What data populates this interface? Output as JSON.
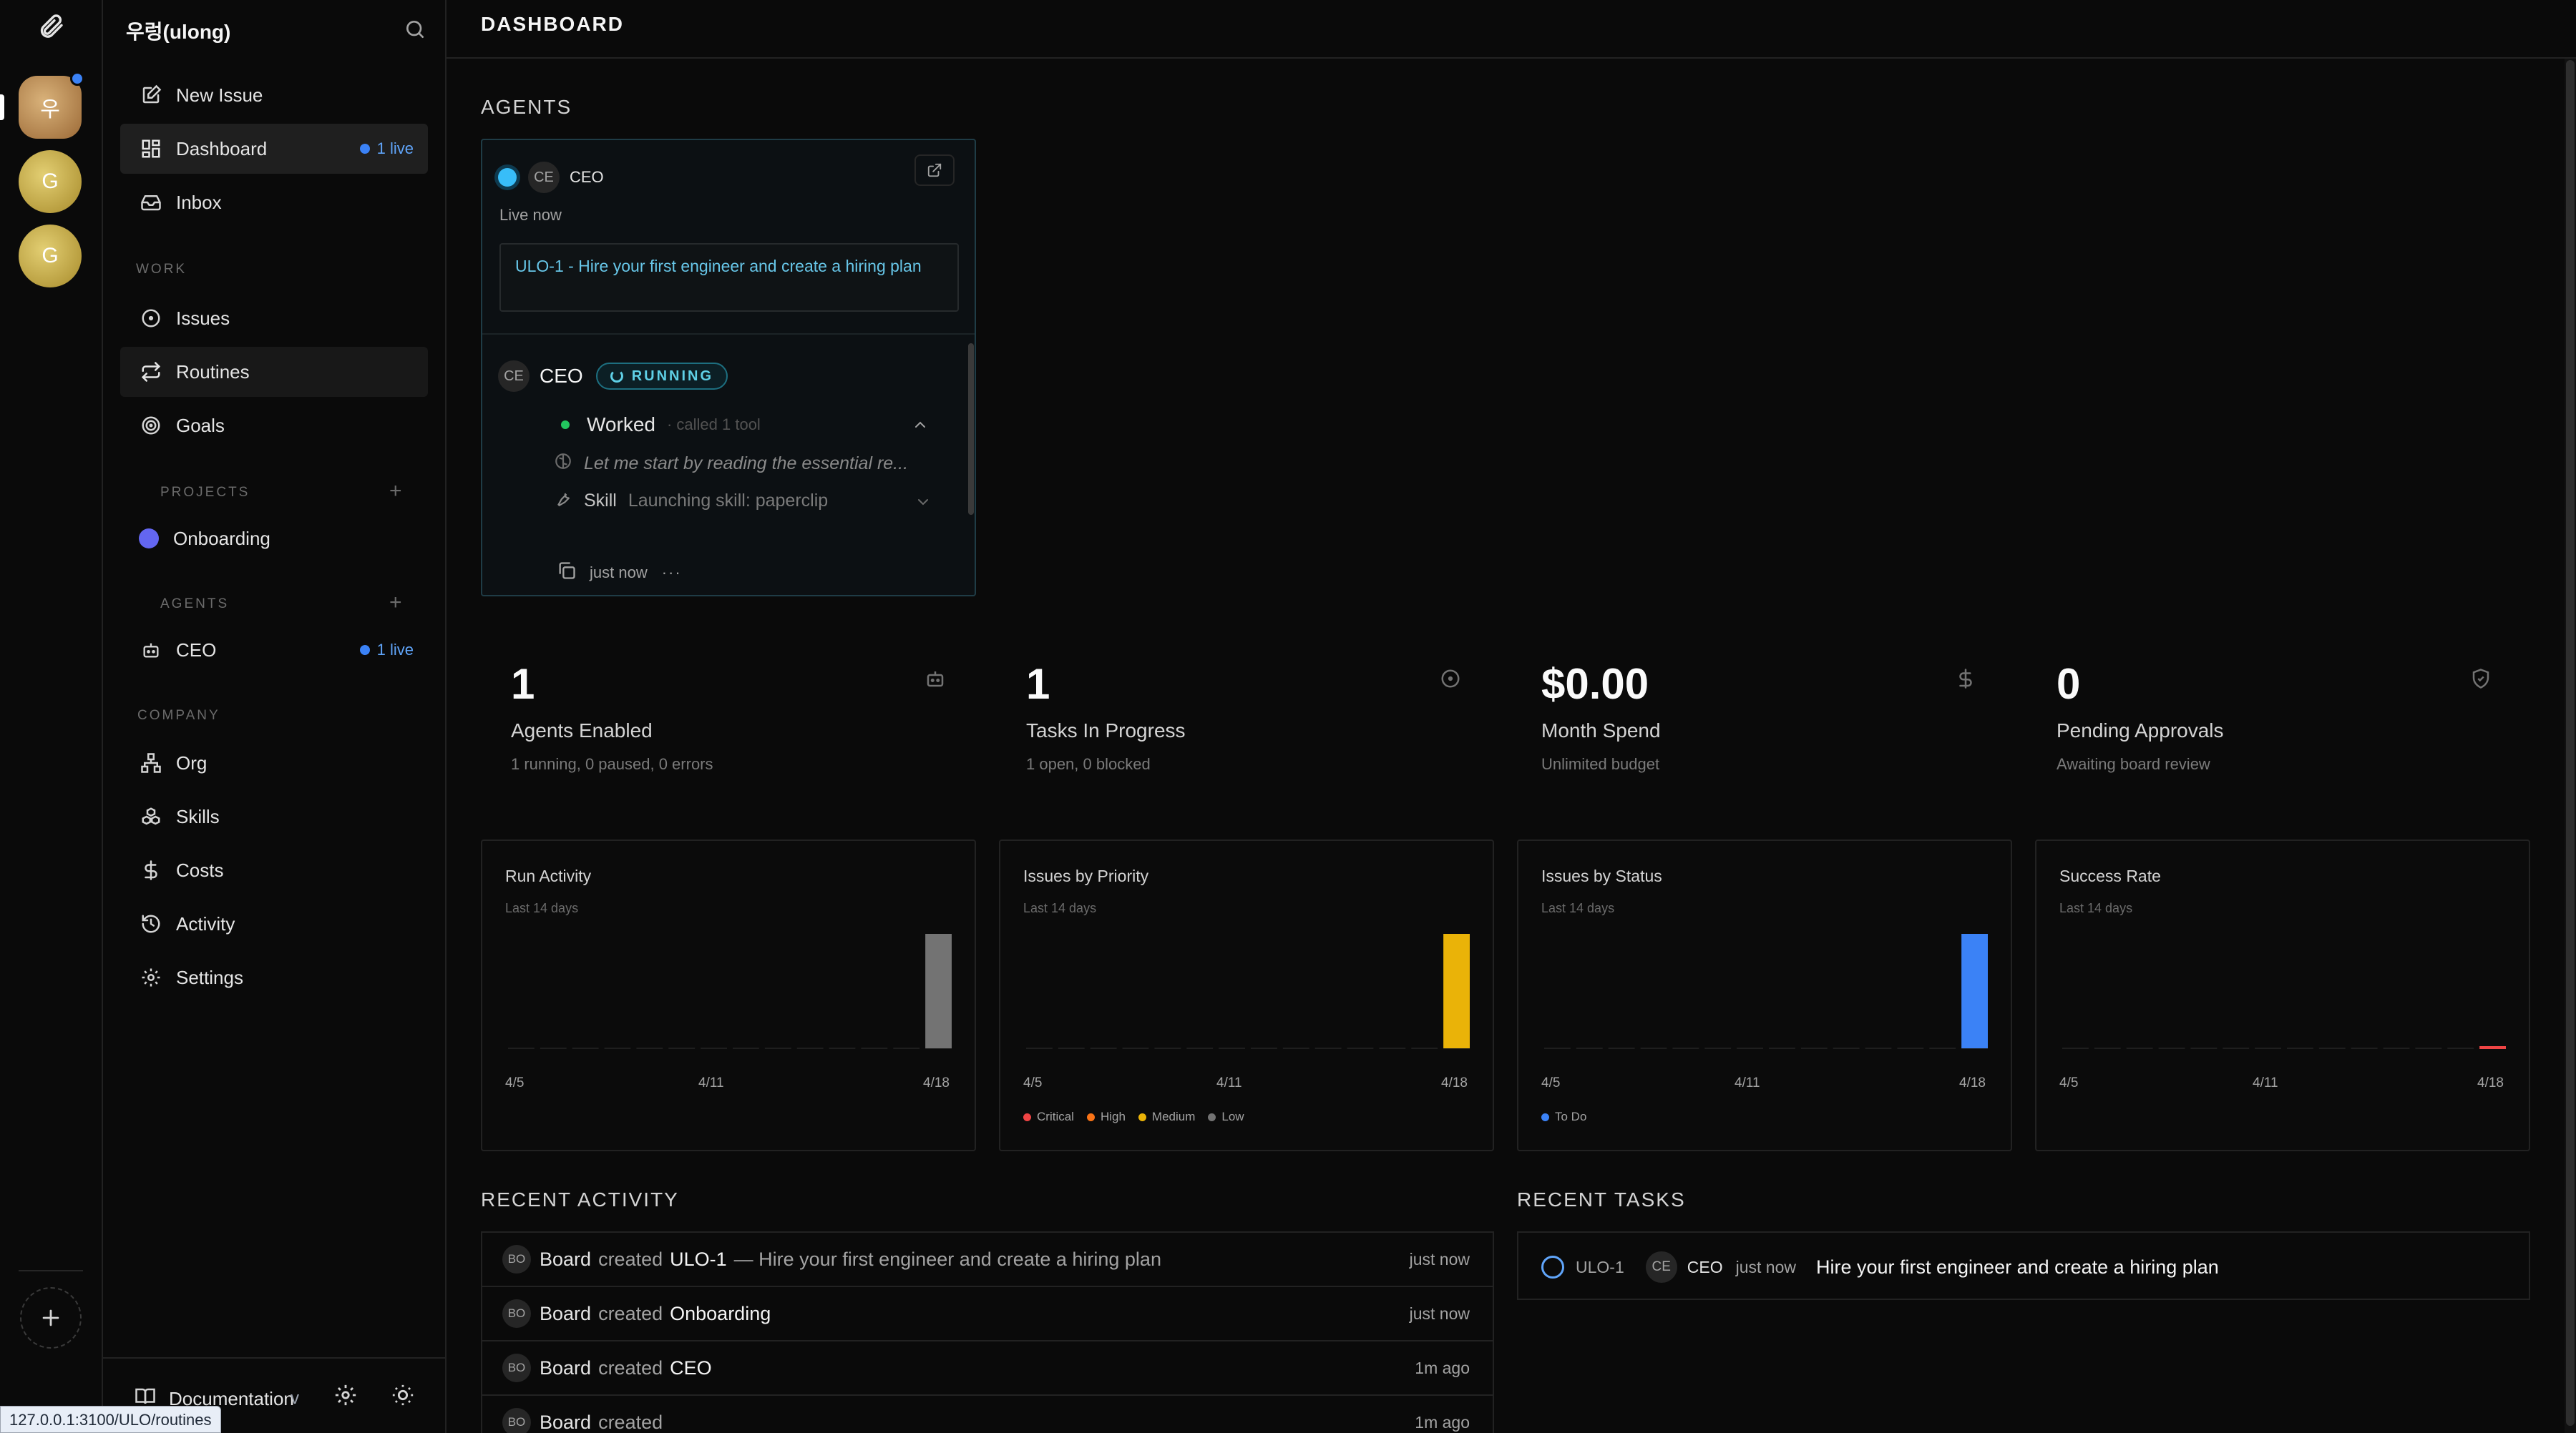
{
  "rail": {
    "avatars": [
      {
        "letter": "우"
      },
      {
        "letter": "G"
      },
      {
        "letter": "G"
      }
    ]
  },
  "sidebar": {
    "company": "우렁(ulong)",
    "top_items": [
      {
        "label": "New Issue"
      },
      {
        "label": "Dashboard",
        "badge": "1 live"
      },
      {
        "label": "Inbox"
      }
    ],
    "work": {
      "label": "WORK",
      "items": [
        {
          "label": "Issues"
        },
        {
          "label": "Routines"
        },
        {
          "label": "Goals"
        }
      ]
    },
    "projects": {
      "label": "PROJECTS",
      "items": [
        {
          "label": "Onboarding",
          "color": "#6366f1"
        }
      ]
    },
    "agents": {
      "label": "AGENTS",
      "items": [
        {
          "label": "CEO",
          "badge": "1 live"
        }
      ]
    },
    "company_section": {
      "label": "COMPANY",
      "items": [
        {
          "label": "Org"
        },
        {
          "label": "Skills"
        },
        {
          "label": "Costs"
        },
        {
          "label": "Activity"
        },
        {
          "label": "Settings"
        }
      ]
    },
    "footer": {
      "documentation": "Documentation",
      "version": "v"
    },
    "status_url": "127.0.0.1:3100/ULO/routines"
  },
  "header": {
    "title": "DASHBOARD"
  },
  "agents_section": {
    "title": "AGENTS",
    "card": {
      "avatar": "CE",
      "name": "CEO",
      "status": "Live now",
      "task": "ULO-1 - Hire your first engineer and create a hiring plan",
      "run": {
        "avatar": "CE",
        "name": "CEO",
        "badge": "RUNNING",
        "worked": "Worked",
        "called": "· called 1 tool",
        "thought": "Let me start by reading the essential re...",
        "skill_label": "Skill",
        "skill_detail": "Launching skill: paperclip",
        "time": "just now",
        "more": "···"
      }
    }
  },
  "stats": [
    {
      "value": "1",
      "label": "Agents Enabled",
      "sub": "1 running, 0 paused, 0 errors",
      "icon": "bot-icon"
    },
    {
      "value": "1",
      "label": "Tasks In Progress",
      "sub": "1 open, 0 blocked",
      "icon": "circle-dot-icon"
    },
    {
      "value": "$0.00",
      "label": "Month Spend",
      "sub": "Unlimited budget",
      "icon": "dollar-icon"
    },
    {
      "value": "0",
      "label": "Pending Approvals",
      "sub": "Awaiting board review",
      "icon": "shield-check-icon"
    }
  ],
  "charts": {
    "subtitle": "Last 14 days",
    "ticks": [
      "4/5",
      "4/11",
      "4/18"
    ]
  },
  "chart_data": [
    {
      "type": "bar",
      "title": "Run Activity",
      "subtitle": "Last 14 days",
      "categories": [
        "4/5",
        "4/6",
        "4/7",
        "4/8",
        "4/9",
        "4/10",
        "4/11",
        "4/12",
        "4/13",
        "4/14",
        "4/15",
        "4/16",
        "4/17",
        "4/18"
      ],
      "values": [
        0,
        0,
        0,
        0,
        0,
        0,
        0,
        0,
        0,
        0,
        0,
        0,
        0,
        1
      ],
      "color": "#737373",
      "xticks": [
        "4/5",
        "4/11",
        "4/18"
      ]
    },
    {
      "type": "bar",
      "title": "Issues by Priority",
      "subtitle": "Last 14 days",
      "categories": [
        "4/5",
        "4/6",
        "4/7",
        "4/8",
        "4/9",
        "4/10",
        "4/11",
        "4/12",
        "4/13",
        "4/14",
        "4/15",
        "4/16",
        "4/17",
        "4/18"
      ],
      "series": [
        {
          "name": "Critical",
          "color": "#ef4444",
          "values": [
            0,
            0,
            0,
            0,
            0,
            0,
            0,
            0,
            0,
            0,
            0,
            0,
            0,
            0
          ]
        },
        {
          "name": "High",
          "color": "#f97316",
          "values": [
            0,
            0,
            0,
            0,
            0,
            0,
            0,
            0,
            0,
            0,
            0,
            0,
            0,
            0
          ]
        },
        {
          "name": "Medium",
          "color": "#eab308",
          "values": [
            0,
            0,
            0,
            0,
            0,
            0,
            0,
            0,
            0,
            0,
            0,
            0,
            0,
            1
          ]
        },
        {
          "name": "Low",
          "color": "#737373",
          "values": [
            0,
            0,
            0,
            0,
            0,
            0,
            0,
            0,
            0,
            0,
            0,
            0,
            0,
            0
          ]
        }
      ],
      "legend": "bottom-left",
      "xticks": [
        "4/5",
        "4/11",
        "4/18"
      ]
    },
    {
      "type": "bar",
      "title": "Issues by Status",
      "subtitle": "Last 14 days",
      "categories": [
        "4/5",
        "4/6",
        "4/7",
        "4/8",
        "4/9",
        "4/10",
        "4/11",
        "4/12",
        "4/13",
        "4/14",
        "4/15",
        "4/16",
        "4/17",
        "4/18"
      ],
      "series": [
        {
          "name": "To Do",
          "color": "#3b82f6",
          "values": [
            0,
            0,
            0,
            0,
            0,
            0,
            0,
            0,
            0,
            0,
            0,
            0,
            0,
            1
          ]
        }
      ],
      "legend": "bottom-left",
      "xticks": [
        "4/5",
        "4/11",
        "4/18"
      ]
    },
    {
      "type": "bar",
      "title": "Success Rate",
      "subtitle": "Last 14 days",
      "categories": [
        "4/5",
        "4/6",
        "4/7",
        "4/8",
        "4/9",
        "4/10",
        "4/11",
        "4/12",
        "4/13",
        "4/14",
        "4/15",
        "4/16",
        "4/17",
        "4/18"
      ],
      "values": [
        0,
        0,
        0,
        0,
        0,
        0,
        0,
        0,
        0,
        0,
        0,
        0,
        0,
        0
      ],
      "highlight_last": true,
      "color": "#ef4444",
      "xticks": [
        "4/5",
        "4/11",
        "4/18"
      ]
    }
  ],
  "recent_activity": {
    "title": "RECENT ACTIVITY",
    "rows": [
      {
        "avatar": "BO",
        "actor": "Board",
        "verb": "created",
        "target": "ULO-1",
        "detail": "— Hire your first engineer and create a hiring plan",
        "time": "just now"
      },
      {
        "avatar": "BO",
        "actor": "Board",
        "verb": "created",
        "target": "Onboarding",
        "detail": "",
        "time": "just now"
      },
      {
        "avatar": "BO",
        "actor": "Board",
        "verb": "created",
        "target": "CEO",
        "detail": "",
        "time": "1m ago"
      },
      {
        "avatar": "BO",
        "actor": "Board",
        "verb": "created",
        "target": "",
        "detail": "",
        "time": "1m ago"
      }
    ]
  },
  "recent_tasks": {
    "title": "RECENT TASKS",
    "rows": [
      {
        "id": "ULO-1",
        "avatar": "CE",
        "agent": "CEO",
        "time": "just now",
        "title": "Hire your first engineer and create a hiring plan"
      }
    ]
  }
}
